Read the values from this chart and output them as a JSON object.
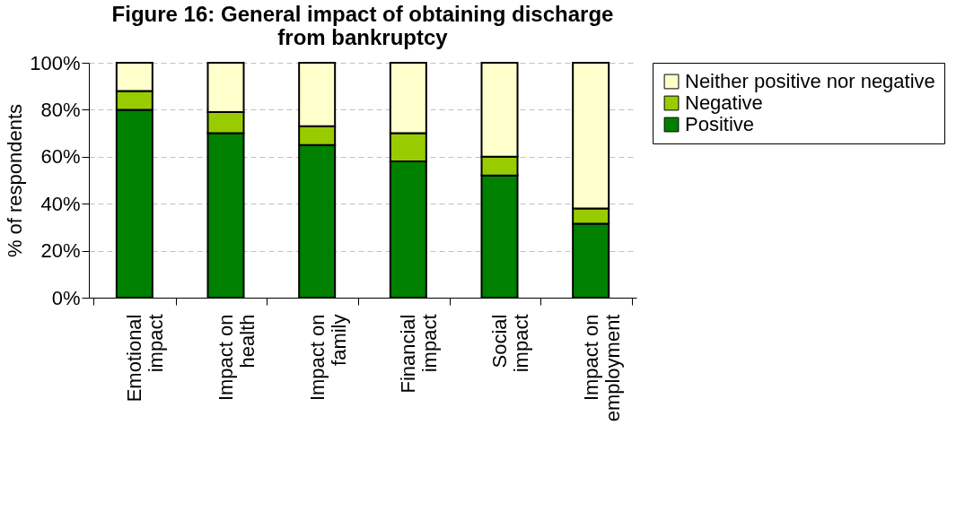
{
  "chart_data": {
    "type": "bar",
    "title": "Figure 16: General impact of obtaining discharge from bankruptcy",
    "ylabel": "% of respondents",
    "categories": [
      "Emotional\nimpact",
      "Impact on\nhealth",
      "Impact on\nfamily",
      "Financial\nimpact",
      "Social\nimpact",
      "Impact on\nemployment"
    ],
    "stacked": true,
    "series": [
      {
        "name": "Positive",
        "color": "#008000",
        "values": [
          80,
          70,
          65,
          58,
          52,
          31.5
        ]
      },
      {
        "name": "Negative",
        "color": "#99cc00",
        "values": [
          8,
          9,
          8,
          12,
          8,
          6.5
        ]
      },
      {
        "name": "Neither positive nor negative",
        "color": "#ffffcc",
        "values": [
          12,
          21,
          27,
          30,
          40,
          62
        ]
      }
    ],
    "ylim": [
      0,
      100
    ],
    "yticks": [
      {
        "value": 0,
        "label": "0%"
      },
      {
        "value": 20,
        "label": "20%"
      },
      {
        "value": 40,
        "label": "40%"
      },
      {
        "value": 60,
        "label": "60%"
      },
      {
        "value": 80,
        "label": "80%"
      },
      {
        "value": 100,
        "label": "100%"
      }
    ],
    "grid": "y",
    "legend": "right"
  }
}
